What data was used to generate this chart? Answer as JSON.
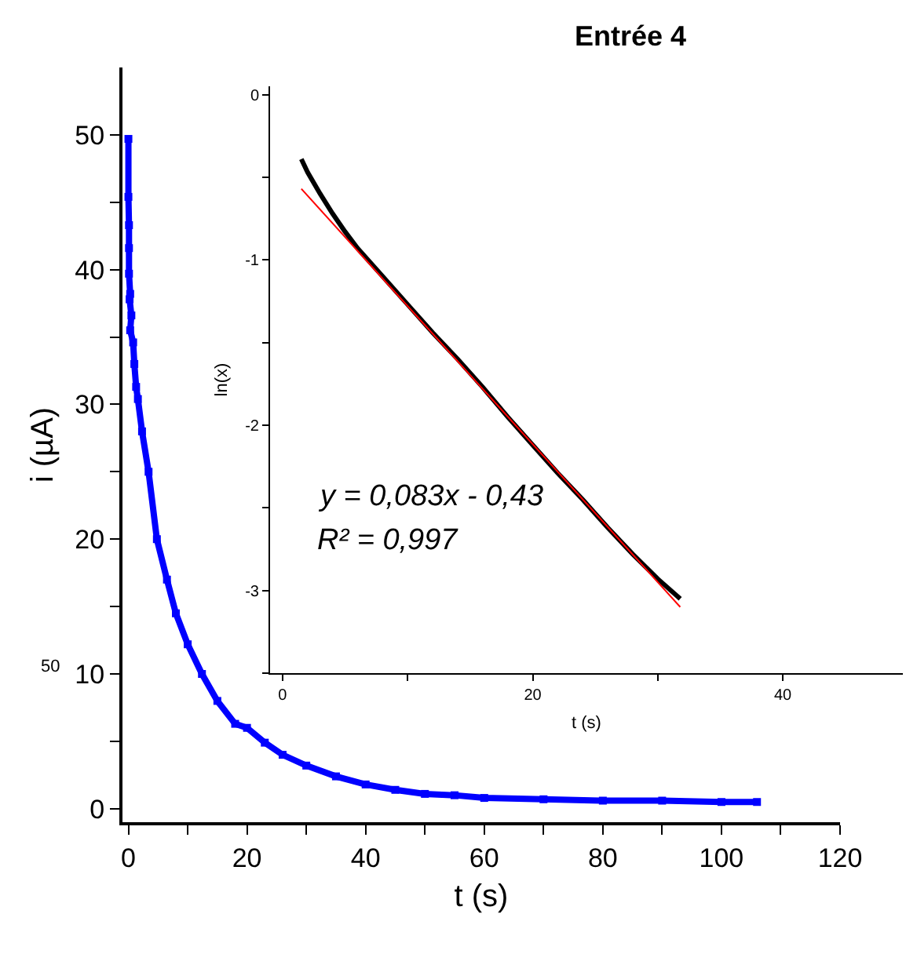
{
  "chart_data": [
    {
      "type": "line",
      "title": "Entrée 4",
      "xlabel": "t (s)",
      "ylabel": "i (µA)",
      "marker": "square",
      "grid": false,
      "xlim": [
        -1,
        120
      ],
      "ylim": [
        -1,
        55
      ],
      "xticks": [
        0,
        {
          "value": 10,
          "label": null
        },
        20,
        {
          "value": 30,
          "label": null
        },
        40,
        {
          "value": 50,
          "label": null
        },
        60,
        {
          "value": 70,
          "label": null
        },
        80,
        {
          "value": 90,
          "label": null
        },
        100,
        {
          "value": 110,
          "label": null
        },
        120
      ],
      "yticks": [
        0,
        {
          "value": 5,
          "label": null
        },
        10,
        {
          "value": 15,
          "label": null
        },
        20,
        {
          "value": 25,
          "label": null
        },
        30,
        {
          "value": 35,
          "label": null
        },
        40,
        {
          "value": 45,
          "label": null
        },
        50
      ],
      "annotations": [
        "50"
      ],
      "series": [
        {
          "color": "#0000ff",
          "x": [
            0,
            0,
            0.1,
            0.1,
            0.1,
            0.3,
            0.2,
            0.5,
            0.3,
            0.8,
            1,
            1.3,
            1.6,
            2.3,
            3.4,
            4.8,
            6.5,
            8,
            10,
            12.4,
            15,
            18,
            20,
            23,
            26,
            30,
            35,
            40,
            45,
            50,
            55,
            60,
            70,
            80,
            90,
            100,
            106
          ],
          "values": [
            49.7,
            45.4,
            43.3,
            41.6,
            39.7,
            38.2,
            37.8,
            36.6,
            35.5,
            34.6,
            33,
            31.3,
            30.4,
            28,
            25,
            20,
            17,
            14.5,
            12.2,
            10,
            8,
            6.3,
            6,
            4.9,
            4,
            3.2,
            2.4,
            1.8,
            1.4,
            1.1,
            1,
            0.8,
            0.7,
            0.6,
            0.6,
            0.5,
            0.5
          ]
        }
      ]
    },
    {
      "type": "line",
      "xlabel": "t (s)",
      "ylabel": "ln(x)",
      "marker": "none",
      "grid": false,
      "xlim": [
        -1,
        49.6
      ],
      "ylim": [
        -3.5,
        0.05
      ],
      "xticks": [
        0,
        {
          "value": 10,
          "label": null
        },
        20,
        {
          "value": 30,
          "label": null
        },
        40
      ],
      "yticks": [
        {
          "value": -3.5,
          "label": null
        },
        -3,
        {
          "value": -2.5,
          "label": null
        },
        -2,
        {
          "value": -1.5,
          "label": null
        },
        -1,
        {
          "value": -0.5,
          "label": null
        },
        0
      ],
      "annotations": [
        "y = 0,083x - 0,43",
        "R² = 0,997"
      ],
      "series": [
        {
          "color": "#000000",
          "x": [
            1.5,
            2,
            3,
            4,
            5,
            6,
            8,
            10,
            12,
            14,
            16,
            18,
            20,
            22,
            24,
            26,
            28,
            30,
            31.8
          ],
          "values": [
            -0.39,
            -0.47,
            -0.6,
            -0.72,
            -0.83,
            -0.93,
            -1.1,
            -1.27,
            -1.44,
            -1.6,
            -1.77,
            -1.95,
            -2.12,
            -2.29,
            -2.45,
            -2.62,
            -2.78,
            -2.93,
            -3.05
          ]
        },
        {
          "color": "#ff0000",
          "x": [
            1.5,
            31.8
          ],
          "values": [
            -0.57,
            -3.1
          ]
        }
      ]
    }
  ]
}
